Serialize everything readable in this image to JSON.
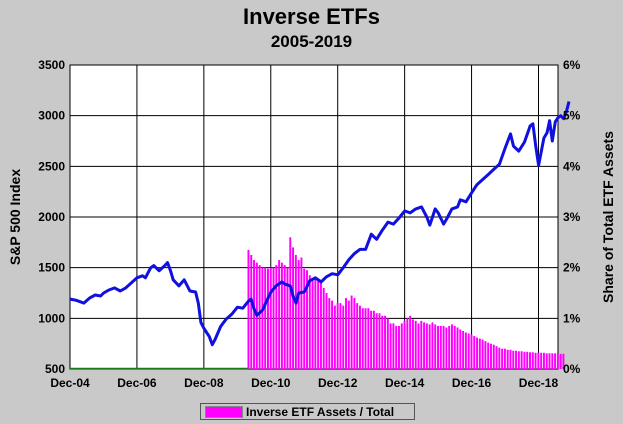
{
  "chart_data": {
    "type": "line+bar",
    "title": "Inverse ETFs",
    "subtitle": "2005-2019",
    "ylabel_left": "S&P 500 Index",
    "ylabel_right": "Share of Total ETF Assets",
    "ylim_left": [
      500,
      3500
    ],
    "ylim_right": [
      0,
      6
    ],
    "xlim": [
      2004.917,
      2019.5
    ],
    "x_tick_labels": [
      "Dec-04",
      "Dec-06",
      "Dec-08",
      "Dec-10",
      "Dec-12",
      "Dec-14",
      "Dec-16",
      "Dec-18"
    ],
    "x_ticks": [
      2004.917,
      2006.917,
      2008.917,
      2010.917,
      2012.917,
      2014.917,
      2016.917,
      2018.917
    ],
    "y_ticks_left": [
      500,
      1000,
      1500,
      2000,
      2500,
      3000,
      3500
    ],
    "y_ticks_right": [
      0,
      1,
      2,
      3,
      4,
      5,
      6
    ],
    "y_tick_labels_right": [
      "0%",
      "1%",
      "2%",
      "3%",
      "4%",
      "5%",
      "6%"
    ],
    "grid": true,
    "legend_position": "bottom-center",
    "colors": {
      "line": "#1010e0",
      "bars": "#ff00ff",
      "plot_bg": "#ffffff",
      "page_bg": "#c9c9c9"
    },
    "series": [
      {
        "name": "S&P 500 Index",
        "type": "line",
        "points": [
          [
            2004.92,
            1190
          ],
          [
            2005.08,
            1180
          ],
          [
            2005.25,
            1160
          ],
          [
            2005.33,
            1150
          ],
          [
            2005.5,
            1200
          ],
          [
            2005.67,
            1230
          ],
          [
            2005.83,
            1220
          ],
          [
            2005.92,
            1250
          ],
          [
            2006.08,
            1280
          ],
          [
            2006.25,
            1300
          ],
          [
            2006.42,
            1270
          ],
          [
            2006.58,
            1300
          ],
          [
            2006.75,
            1350
          ],
          [
            2006.92,
            1400
          ],
          [
            2007.08,
            1420
          ],
          [
            2007.17,
            1400
          ],
          [
            2007.33,
            1500
          ],
          [
            2007.42,
            1520
          ],
          [
            2007.58,
            1470
          ],
          [
            2007.75,
            1520
          ],
          [
            2007.83,
            1550
          ],
          [
            2007.92,
            1470
          ],
          [
            2008.0,
            1380
          ],
          [
            2008.17,
            1320
          ],
          [
            2008.33,
            1380
          ],
          [
            2008.5,
            1270
          ],
          [
            2008.67,
            1260
          ],
          [
            2008.75,
            1150
          ],
          [
            2008.83,
            960
          ],
          [
            2008.92,
            900
          ],
          [
            2009.08,
            820
          ],
          [
            2009.17,
            740
          ],
          [
            2009.25,
            790
          ],
          [
            2009.42,
            920
          ],
          [
            2009.58,
            990
          ],
          [
            2009.75,
            1040
          ],
          [
            2009.92,
            1110
          ],
          [
            2010.08,
            1100
          ],
          [
            2010.25,
            1170
          ],
          [
            2010.33,
            1190
          ],
          [
            2010.42,
            1090
          ],
          [
            2010.5,
            1030
          ],
          [
            2010.67,
            1080
          ],
          [
            2010.75,
            1140
          ],
          [
            2010.92,
            1260
          ],
          [
            2011.08,
            1320
          ],
          [
            2011.25,
            1360
          ],
          [
            2011.33,
            1340
          ],
          [
            2011.5,
            1320
          ],
          [
            2011.58,
            1220
          ],
          [
            2011.67,
            1150
          ],
          [
            2011.75,
            1250
          ],
          [
            2011.92,
            1260
          ],
          [
            2012.08,
            1370
          ],
          [
            2012.25,
            1400
          ],
          [
            2012.42,
            1360
          ],
          [
            2012.58,
            1410
          ],
          [
            2012.75,
            1440
          ],
          [
            2012.92,
            1430
          ],
          [
            2013.08,
            1500
          ],
          [
            2013.25,
            1580
          ],
          [
            2013.42,
            1640
          ],
          [
            2013.58,
            1680
          ],
          [
            2013.75,
            1680
          ],
          [
            2013.92,
            1830
          ],
          [
            2014.08,
            1780
          ],
          [
            2014.25,
            1870
          ],
          [
            2014.42,
            1950
          ],
          [
            2014.58,
            1930
          ],
          [
            2014.75,
            1990
          ],
          [
            2014.92,
            2060
          ],
          [
            2015.08,
            2040
          ],
          [
            2015.25,
            2080
          ],
          [
            2015.42,
            2100
          ],
          [
            2015.58,
            2000
          ],
          [
            2015.67,
            1920
          ],
          [
            2015.83,
            2080
          ],
          [
            2015.92,
            2040
          ],
          [
            2016.08,
            1930
          ],
          [
            2016.17,
            1980
          ],
          [
            2016.33,
            2080
          ],
          [
            2016.5,
            2100
          ],
          [
            2016.58,
            2170
          ],
          [
            2016.75,
            2150
          ],
          [
            2016.92,
            2240
          ],
          [
            2017.08,
            2320
          ],
          [
            2017.25,
            2370
          ],
          [
            2017.42,
            2420
          ],
          [
            2017.58,
            2470
          ],
          [
            2017.75,
            2520
          ],
          [
            2017.92,
            2680
          ],
          [
            2018.08,
            2820
          ],
          [
            2018.17,
            2700
          ],
          [
            2018.33,
            2650
          ],
          [
            2018.5,
            2740
          ],
          [
            2018.67,
            2900
          ],
          [
            2018.75,
            2920
          ],
          [
            2018.83,
            2710
          ],
          [
            2018.92,
            2510
          ],
          [
            2019.08,
            2780
          ],
          [
            2019.17,
            2830
          ],
          [
            2019.25,
            2950
          ],
          [
            2019.33,
            2750
          ],
          [
            2019.42,
            2940
          ],
          [
            2019.5,
            2980
          ],
          [
            2019.58,
            3000
          ],
          [
            2019.67,
            2970
          ],
          [
            2019.75,
            3040
          ],
          [
            2019.83,
            3140
          ]
        ]
      },
      {
        "name": "Inverse ETF Assets / Total",
        "type": "bar",
        "x_start": 2010.25,
        "x_step": 0.0833,
        "values": [
          2.35,
          2.25,
          2.15,
          2.1,
          2.05,
          2.0,
          2.0,
          1.98,
          2.0,
          2.0,
          2.05,
          2.15,
          2.1,
          2.05,
          2.0,
          2.6,
          2.4,
          2.25,
          2.15,
          2.2,
          1.98,
          1.95,
          1.85,
          1.75,
          1.78,
          1.75,
          1.7,
          1.6,
          1.5,
          1.4,
          1.35,
          1.25,
          1.3,
          1.3,
          1.25,
          1.4,
          1.35,
          1.45,
          1.4,
          1.3,
          1.25,
          1.2,
          1.2,
          1.2,
          1.15,
          1.15,
          1.1,
          1.1,
          1.05,
          1.05,
          1.0,
          0.9,
          0.9,
          0.85,
          0.85,
          0.9,
          0.95,
          1.0,
          1.05,
          0.98,
          0.95,
          0.9,
          0.95,
          0.92,
          0.9,
          0.88,
          0.92,
          0.88,
          0.85,
          0.85,
          0.85,
          0.82,
          0.85,
          0.88,
          0.85,
          0.82,
          0.78,
          0.75,
          0.72,
          0.7,
          0.68,
          0.65,
          0.62,
          0.6,
          0.58,
          0.55,
          0.52,
          0.5,
          0.48,
          0.45,
          0.42,
          0.4,
          0.4,
          0.38,
          0.38,
          0.36,
          0.36,
          0.35,
          0.35,
          0.34,
          0.34,
          0.33,
          0.33,
          0.32,
          0.32,
          0.32,
          0.32,
          0.31,
          0.31,
          0.31,
          0.31,
          0.31,
          0.3,
          0.3
        ]
      }
    ]
  }
}
